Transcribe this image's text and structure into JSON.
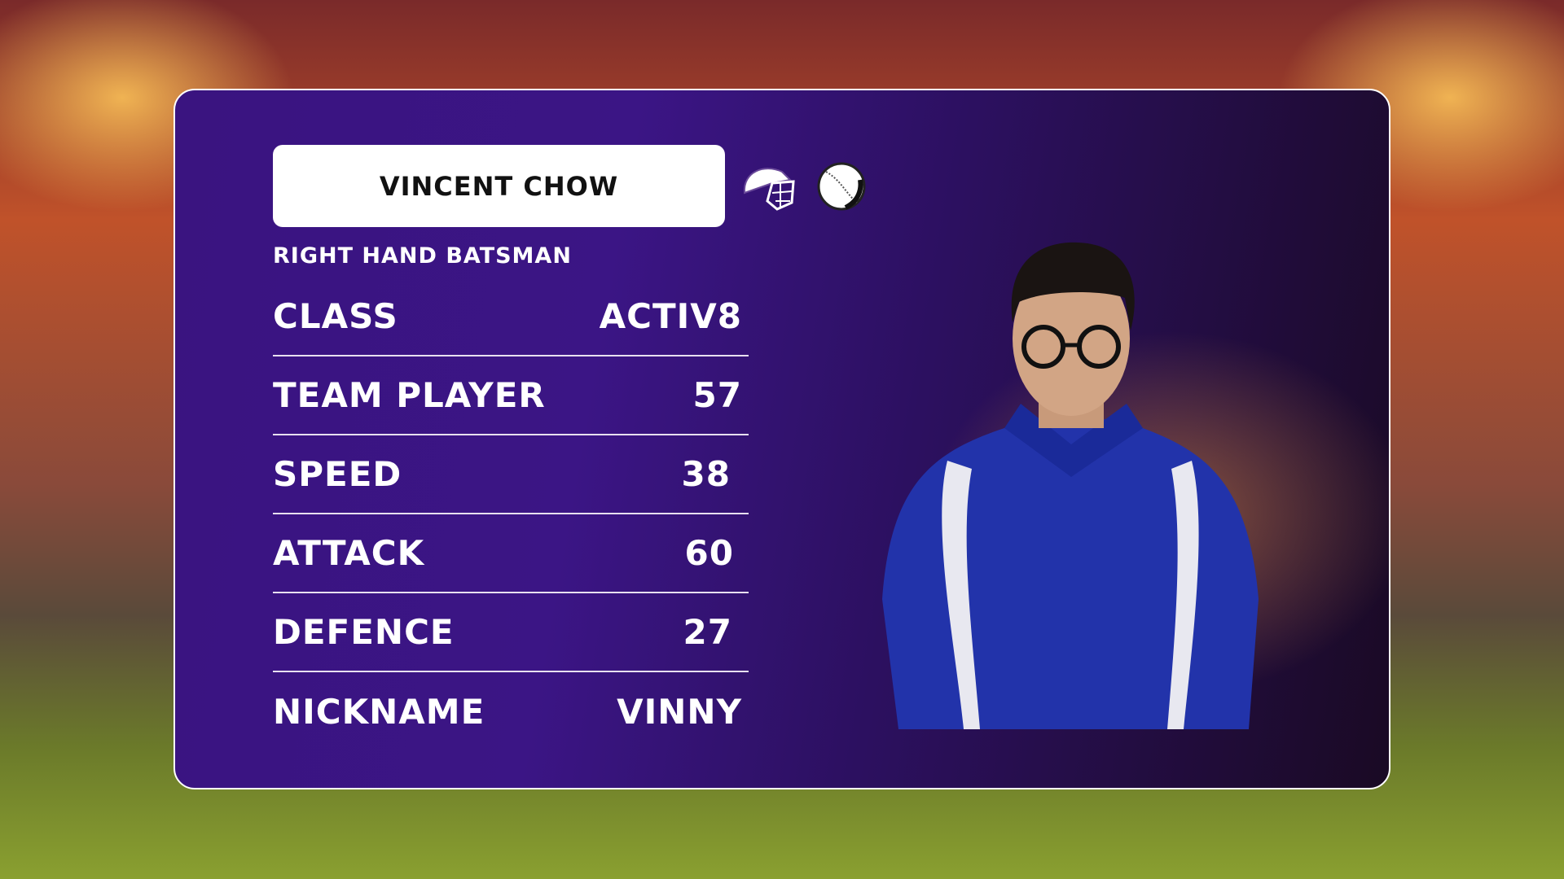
{
  "player": {
    "name": "VINCENT CHOW",
    "role": "RIGHT HAND BATSMAN",
    "icons": [
      "helmet-icon",
      "cricket-ball-icon"
    ],
    "stats": [
      {
        "label": "CLASS",
        "value": "ACTIV8"
      },
      {
        "label": "TEAM PLAYER",
        "value": "57"
      },
      {
        "label": "SPEED",
        "value": "38"
      },
      {
        "label": "ATTACK",
        "value": "60"
      },
      {
        "label": "DEFENCE",
        "value": "27"
      },
      {
        "label": "NICKNAME",
        "value": "VINNY"
      }
    ]
  },
  "colors": {
    "card": "#3b1585",
    "accent": "#ffffff",
    "shirt": "#2233aa"
  }
}
